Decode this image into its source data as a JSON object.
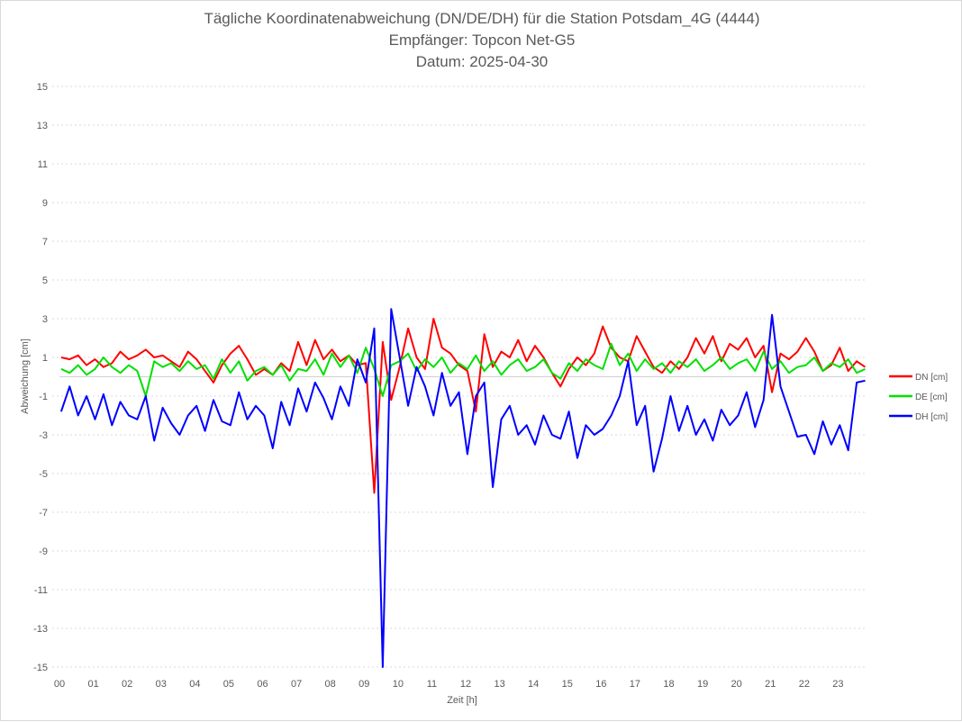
{
  "chart_data": {
    "type": "line",
    "title": "Tägliche Koordinatenabweichung (DN/DE/DH) für die Station Potsdam_4G (4444)",
    "subtitle": [
      "Empfänger: Topcon Net-G5",
      "Datum: 2025-04-30"
    ],
    "xlabel": "Zeit [h]",
    "ylabel": "Abweichung [cm]",
    "xlim": [
      0,
      24
    ],
    "ylim": [
      -15,
      15
    ],
    "x_ticks": [
      "00",
      "01",
      "02",
      "03",
      "04",
      "05",
      "06",
      "07",
      "08",
      "09",
      "10",
      "11",
      "12",
      "13",
      "14",
      "15",
      "16",
      "17",
      "18",
      "19",
      "20",
      "21",
      "22",
      "23"
    ],
    "y_ticks": [
      15,
      13,
      11,
      9,
      7,
      5,
      3,
      1,
      -1,
      -3,
      -5,
      -7,
      -9,
      -11,
      -13,
      -15
    ],
    "grid": "horizontal dotted",
    "legend_position": "right",
    "x_step_hours": 0.25,
    "series": [
      {
        "name": "DN [cm]",
        "color": "#ff0000",
        "values": [
          1.0,
          0.9,
          1.1,
          0.6,
          0.9,
          0.5,
          0.7,
          1.3,
          0.9,
          1.1,
          1.4,
          1.0,
          1.1,
          0.8,
          0.5,
          1.3,
          0.9,
          0.3,
          -0.3,
          0.6,
          1.2,
          1.6,
          0.9,
          0.1,
          0.4,
          0.1,
          0.7,
          0.3,
          1.8,
          0.6,
          1.9,
          0.9,
          1.4,
          0.8,
          1.1,
          0.6,
          0.7,
          -6.0,
          1.8,
          -1.2,
          0.5,
          2.5,
          1.0,
          0.4,
          3.0,
          1.5,
          1.2,
          0.6,
          0.3,
          -1.8,
          2.2,
          0.5,
          1.3,
          1.0,
          1.9,
          0.8,
          1.6,
          1.0,
          0.2,
          -0.5,
          0.4,
          1.0,
          0.6,
          1.2,
          2.6,
          1.5,
          1.0,
          0.8,
          2.1,
          1.3,
          0.5,
          0.2,
          0.8,
          0.4,
          1.0,
          2.0,
          1.2,
          2.1,
          0.8,
          1.7,
          1.4,
          2.0,
          1.0,
          1.6,
          -0.8,
          1.2,
          0.9,
          1.3,
          2.0,
          1.3,
          0.3,
          0.6,
          1.5,
          0.3,
          0.8,
          0.5
        ]
      },
      {
        "name": "DE [cm]",
        "color": "#00e000",
        "values": [
          0.4,
          0.2,
          0.6,
          0.1,
          0.4,
          1.0,
          0.5,
          0.2,
          0.6,
          0.3,
          -1.0,
          0.8,
          0.5,
          0.7,
          0.3,
          0.8,
          0.4,
          0.6,
          -0.1,
          0.9,
          0.2,
          0.8,
          -0.2,
          0.3,
          0.5,
          0.1,
          0.6,
          -0.2,
          0.4,
          0.3,
          0.9,
          0.1,
          1.2,
          0.5,
          1.1,
          0.2,
          1.5,
          0.4,
          -1.0,
          0.6,
          0.8,
          1.2,
          0.3,
          0.9,
          0.5,
          1.0,
          0.2,
          0.7,
          0.4,
          1.1,
          0.3,
          0.8,
          0.1,
          0.6,
          0.9,
          0.3,
          0.5,
          0.9,
          0.2,
          -0.1,
          0.7,
          0.3,
          0.9,
          0.6,
          0.4,
          1.7,
          0.6,
          1.2,
          0.3,
          0.9,
          0.4,
          0.7,
          0.2,
          0.8,
          0.5,
          0.9,
          0.3,
          0.6,
          1.0,
          0.4,
          0.7,
          0.9,
          0.3,
          1.3,
          0.4,
          0.8,
          0.2,
          0.5,
          0.6,
          1.0,
          0.3,
          0.7,
          0.5,
          0.9,
          0.2,
          0.4
        ]
      },
      {
        "name": "DH [cm]",
        "color": "#0000ff",
        "values": [
          -1.8,
          -0.5,
          -2.0,
          -1.0,
          -2.2,
          -0.9,
          -2.5,
          -1.3,
          -2.0,
          -2.2,
          -1.0,
          -3.3,
          -1.6,
          -2.4,
          -3.0,
          -2.0,
          -1.5,
          -2.8,
          -1.2,
          -2.3,
          -2.5,
          -0.8,
          -2.2,
          -1.5,
          -2.0,
          -3.7,
          -1.3,
          -2.5,
          -0.6,
          -1.8,
          -0.3,
          -1.1,
          -2.2,
          -0.5,
          -1.5,
          0.9,
          -0.3,
          2.5,
          -15.0,
          3.5,
          1.0,
          -1.5,
          0.5,
          -0.5,
          -2.0,
          0.2,
          -1.5,
          -0.8,
          -4.0,
          -1.0,
          -0.3,
          -5.7,
          -2.2,
          -1.5,
          -3.0,
          -2.5,
          -3.5,
          -2.0,
          -3.0,
          -3.2,
          -1.8,
          -4.2,
          -2.5,
          -3.0,
          -2.7,
          -2.0,
          -1.0,
          0.8,
          -2.5,
          -1.5,
          -4.9,
          -3.2,
          -1.0,
          -2.8,
          -1.5,
          -3.0,
          -2.2,
          -3.3,
          -1.7,
          -2.5,
          -2.0,
          -0.8,
          -2.6,
          -1.2,
          3.2,
          -0.5,
          -1.8,
          -3.1,
          -3.0,
          -4.0,
          -2.3,
          -3.5,
          -2.5,
          -3.8,
          -0.3,
          -0.2
        ]
      }
    ]
  }
}
